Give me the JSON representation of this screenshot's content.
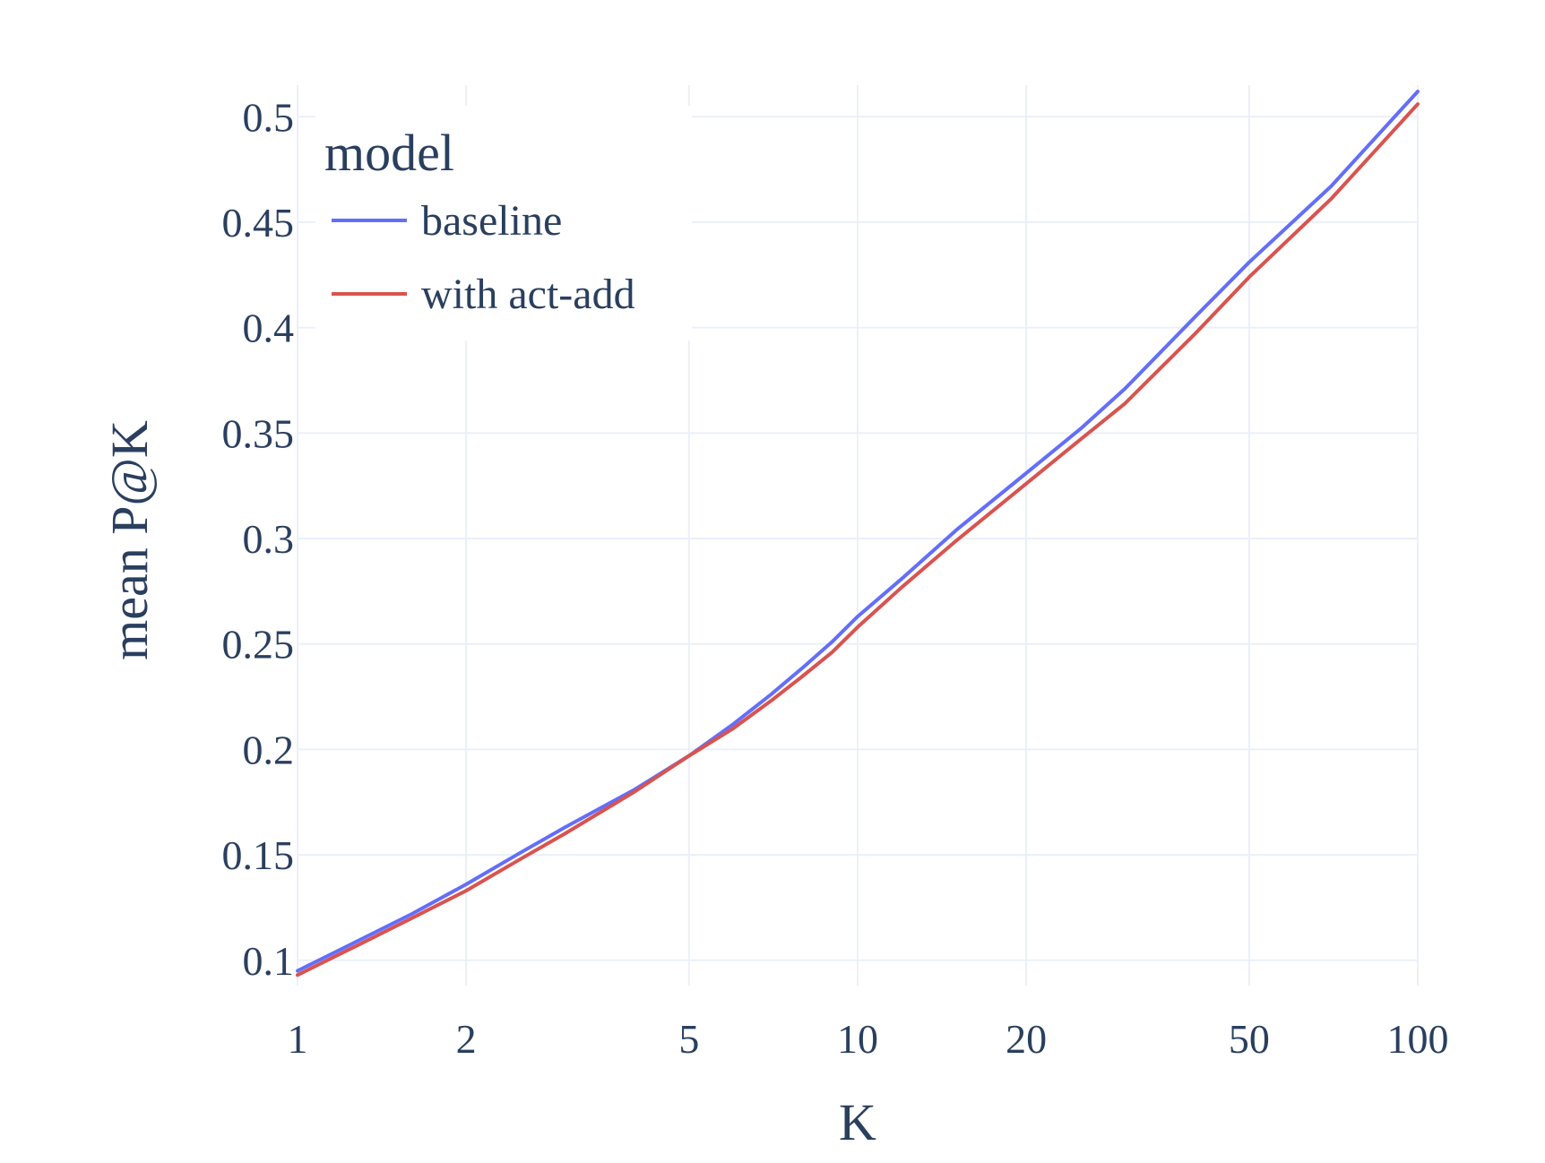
{
  "chart_data": {
    "type": "line",
    "xlabel": "K",
    "ylabel": "mean P@K",
    "x_scale": "log",
    "xlim": [
      1,
      100
    ],
    "ylim": [
      0.088,
      0.515
    ],
    "x_ticks": [
      1,
      2,
      5,
      10,
      20,
      50,
      100
    ],
    "x_tick_labels": [
      "1",
      "2",
      "5",
      "10",
      "20",
      "50",
      "100"
    ],
    "y_ticks": [
      0.1,
      0.15,
      0.2,
      0.25,
      0.3,
      0.35,
      0.4,
      0.45,
      0.5
    ],
    "y_tick_labels": [
      "0.1",
      "0.15",
      "0.2",
      "0.25",
      "0.3",
      "0.35",
      "0.4",
      "0.45",
      "0.5"
    ],
    "grid": true,
    "legend": {
      "title": "model",
      "placement": "top-left"
    },
    "series": [
      {
        "name": "baseline",
        "color": "#636efa",
        "x": [
          1,
          1.3,
          1.6,
          2,
          2.5,
          3,
          4,
          5,
          6,
          7,
          8,
          9,
          10,
          12,
          15,
          20,
          25,
          30,
          40,
          50,
          70,
          100
        ],
        "y": [
          0.095,
          0.11,
          0.122,
          0.136,
          0.151,
          0.163,
          0.181,
          0.197,
          0.212,
          0.226,
          0.239,
          0.251,
          0.263,
          0.281,
          0.304,
          0.331,
          0.352,
          0.371,
          0.405,
          0.431,
          0.467,
          0.512
        ]
      },
      {
        "name": "with act-add",
        "color": "#d9534f",
        "x": [
          1,
          1.3,
          1.6,
          2,
          2.5,
          3,
          4,
          5,
          6,
          7,
          8,
          9,
          10,
          12,
          15,
          20,
          25,
          30,
          40,
          50,
          70,
          100
        ],
        "y": [
          0.093,
          0.108,
          0.12,
          0.133,
          0.148,
          0.16,
          0.18,
          0.197,
          0.21,
          0.223,
          0.235,
          0.246,
          0.258,
          0.277,
          0.299,
          0.326,
          0.347,
          0.364,
          0.397,
          0.424,
          0.461,
          0.506
        ]
      }
    ]
  }
}
